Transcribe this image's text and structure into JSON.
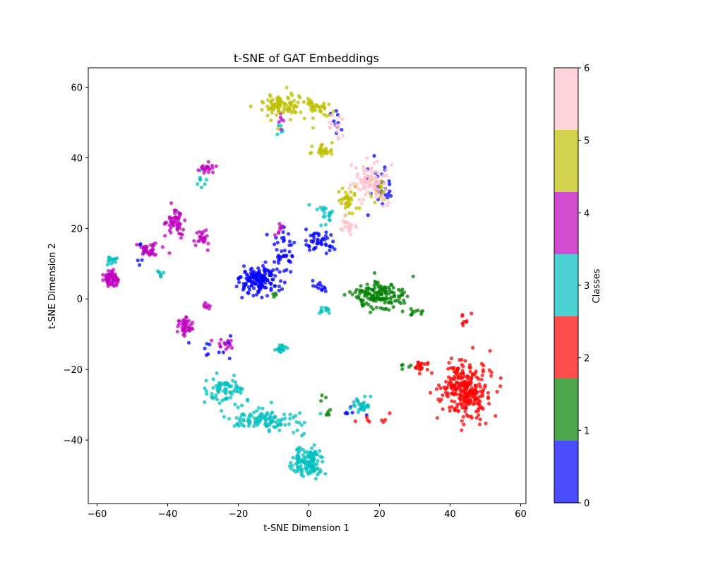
{
  "chart_data": {
    "type": "scatter",
    "title": "t-SNE of GAT Embeddings",
    "xlabel": "t-SNE Dimension 1",
    "ylabel": "t-SNE Dimension 2",
    "xlim": [
      -62.5,
      61.5
    ],
    "ylim": [
      -58,
      65.5
    ],
    "xticks": [
      -60,
      -40,
      -20,
      0,
      20,
      40,
      60
    ],
    "yticks": [
      -40,
      -20,
      0,
      20,
      40,
      60
    ],
    "grid": false,
    "colorbar": {
      "label": "Classes",
      "ticks": [
        0,
        1,
        2,
        3,
        4,
        5,
        6
      ],
      "colors": [
        "#0000ff",
        "#008000",
        "#ff0000",
        "#00bfbf",
        "#bf00bf",
        "#bfbf00",
        "#ffc0cb"
      ]
    },
    "series": [
      {
        "class": 0,
        "color": "#0000ff",
        "clusters": [
          {
            "center": [
              -14,
              5
            ],
            "spread": [
              5,
              4
            ],
            "count": 150
          },
          {
            "center": [
              -7,
              13
            ],
            "spread": [
              3,
              5
            ],
            "count": 40
          },
          {
            "center": [
              3,
              16
            ],
            "spread": [
              4,
              3
            ],
            "count": 45
          },
          {
            "center": [
              3,
              3
            ],
            "spread": [
              2,
              1.5
            ],
            "count": 12
          },
          {
            "center": [
              20,
              32
            ],
            "spread": [
              3,
              5
            ],
            "count": 35
          },
          {
            "center": [
              8,
              50
            ],
            "spread": [
              2,
              3
            ],
            "count": 10
          },
          {
            "center": [
              -27,
              -15
            ],
            "spread": [
              4,
              4
            ],
            "count": 12
          },
          {
            "center": [
              -48,
              12
            ],
            "spread": [
              1.5,
              3
            ],
            "count": 8
          },
          {
            "center": [
              12,
              -32
            ],
            "spread": [
              4,
              2
            ],
            "count": 6
          }
        ]
      },
      {
        "class": 1,
        "color": "#008000",
        "clusters": [
          {
            "center": [
              20,
              1
            ],
            "spread": [
              7,
              3.5
            ],
            "count": 150
          },
          {
            "center": [
              30,
              -4
            ],
            "spread": [
              2,
              1.5
            ],
            "count": 10
          },
          {
            "center": [
              5,
              -30
            ],
            "spread": [
              3,
              3
            ],
            "count": 8
          },
          {
            "center": [
              28,
              -19
            ],
            "spread": [
              3,
              1
            ],
            "count": 6
          },
          {
            "center": [
              -10,
              1
            ],
            "spread": [
              1,
              1
            ],
            "count": 4
          }
        ]
      },
      {
        "class": 2,
        "color": "#ff0000",
        "clusters": [
          {
            "center": [
              44,
              -26
            ],
            "spread": [
              6,
              7
            ],
            "count": 280
          },
          {
            "center": [
              32,
              -19
            ],
            "spread": [
              3,
              2
            ],
            "count": 20
          },
          {
            "center": [
              44,
              -6
            ],
            "spread": [
              1.5,
              2
            ],
            "count": 8
          },
          {
            "center": [
              20,
              -34
            ],
            "spread": [
              5,
              2
            ],
            "count": 8
          }
        ]
      },
      {
        "class": 3,
        "color": "#00bfbf",
        "clusters": [
          {
            "center": [
              0,
              -46
            ],
            "spread": [
              3.5,
              4
            ],
            "count": 130
          },
          {
            "center": [
              -12,
              -34
            ],
            "spread": [
              9,
              3
            ],
            "count": 110
          },
          {
            "center": [
              -24,
              -26
            ],
            "spread": [
              5,
              4
            ],
            "count": 75
          },
          {
            "center": [
              15,
              -30
            ],
            "spread": [
              3,
              2
            ],
            "count": 30
          },
          {
            "center": [
              -8,
              -14
            ],
            "spread": [
              1.2,
              1.2
            ],
            "count": 25
          },
          {
            "center": [
              4,
              -3
            ],
            "spread": [
              1.5,
              1.5
            ],
            "count": 12
          },
          {
            "center": [
              -56,
              11
            ],
            "spread": [
              1.5,
              1
            ],
            "count": 15
          },
          {
            "center": [
              -42,
              7
            ],
            "spread": [
              1,
              1
            ],
            "count": 8
          },
          {
            "center": [
              -30,
              34
            ],
            "spread": [
              1.5,
              2
            ],
            "count": 8
          },
          {
            "center": [
              4,
              24
            ],
            "spread": [
              3,
              3
            ],
            "count": 20
          },
          {
            "center": [
              -8,
              48
            ],
            "spread": [
              1,
              2
            ],
            "count": 5
          }
        ]
      },
      {
        "class": 4,
        "color": "#bf00bf",
        "clusters": [
          {
            "center": [
              -56,
              6
            ],
            "spread": [
              1.8,
              2
            ],
            "count": 60
          },
          {
            "center": [
              -45,
              14
            ],
            "spread": [
              3,
              2
            ],
            "count": 35
          },
          {
            "center": [
              -38,
              22
            ],
            "spread": [
              2.5,
              4
            ],
            "count": 55
          },
          {
            "center": [
              -30,
              17
            ],
            "spread": [
              2,
              3
            ],
            "count": 25
          },
          {
            "center": [
              -29,
              37
            ],
            "spread": [
              2,
              2
            ],
            "count": 20
          },
          {
            "center": [
              -35,
              -8
            ],
            "spread": [
              2,
              2.5
            ],
            "count": 40
          },
          {
            "center": [
              -29,
              -2
            ],
            "spread": [
              1.5,
              1.2
            ],
            "count": 8
          },
          {
            "center": [
              -24,
              -13
            ],
            "spread": [
              3,
              2
            ],
            "count": 14
          },
          {
            "center": [
              -8,
              20
            ],
            "spread": [
              1,
              3
            ],
            "count": 8
          },
          {
            "center": [
              -8,
              51
            ],
            "spread": [
              1,
              3
            ],
            "count": 6
          }
        ]
      },
      {
        "class": 5,
        "color": "#bfbf00",
        "clusters": [
          {
            "center": [
              -8,
              55
            ],
            "spread": [
              5,
              3
            ],
            "count": 90
          },
          {
            "center": [
              2,
              54
            ],
            "spread": [
              4,
              2.5
            ],
            "count": 40
          },
          {
            "center": [
              4,
              42
            ],
            "spread": [
              3,
              2
            ],
            "count": 30
          },
          {
            "center": [
              11,
              28
            ],
            "spread": [
              3,
              4
            ],
            "count": 35
          },
          {
            "center": [
              20,
              32
            ],
            "spread": [
              3,
              3
            ],
            "count": 15
          }
        ]
      },
      {
        "class": 6,
        "color": "#ffc0cb",
        "clusters": [
          {
            "center": [
              18,
              33
            ],
            "spread": [
              4,
              5
            ],
            "count": 90
          },
          {
            "center": [
              11,
              21
            ],
            "spread": [
              2,
              2
            ],
            "count": 20
          },
          {
            "center": [
              7,
              49
            ],
            "spread": [
              2,
              3
            ],
            "count": 15
          }
        ]
      }
    ]
  }
}
